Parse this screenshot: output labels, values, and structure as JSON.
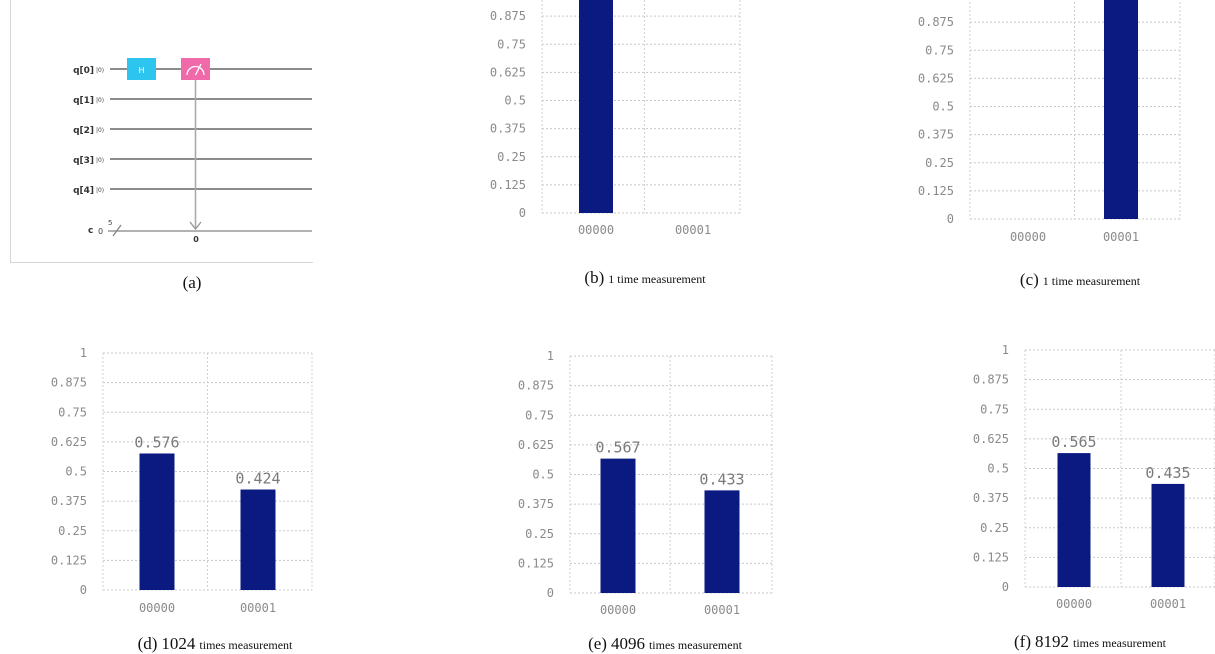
{
  "circuit": {
    "qubits": [
      "q[0]",
      "q[1]",
      "q[2]",
      "q[3]",
      "q[4]"
    ],
    "init_state": "|0⟩",
    "classical_label": "c",
    "classical_init": "0",
    "classical_width": "5",
    "gate_h_label": "H",
    "measure_target": "0",
    "colors": {
      "h_gate": "#2ec4f0",
      "measure_gate": "#f06aa9",
      "wire": "#666666"
    }
  },
  "captions": {
    "a": {
      "letter": "(a)"
    },
    "b": {
      "letter": "(b)",
      "text": "1 time measurement"
    },
    "c": {
      "letter": "(c)",
      "text": "1 time measurement"
    },
    "d": {
      "letter": "(d)",
      "num": "1024",
      "text": "times measurement"
    },
    "e": {
      "letter": "(e)",
      "num": "4096",
      "text": "times measurement"
    },
    "f": {
      "letter": "(f)",
      "num": "8192",
      "text": "times measurement"
    }
  },
  "chart_data": [
    {
      "id": "b",
      "type": "bar",
      "categories": [
        "00000",
        "00001"
      ],
      "values": [
        1,
        0
      ],
      "ylim": [
        0,
        1
      ],
      "yticks": [
        "0",
        "0.125",
        "0.25",
        "0.375",
        "0.5",
        "0.625",
        "0.75",
        "0.875"
      ],
      "data_labels": [
        "",
        ""
      ],
      "bar_color": "#0a1a80"
    },
    {
      "id": "c",
      "type": "bar",
      "categories": [
        "00000",
        "00001"
      ],
      "values": [
        0,
        1
      ],
      "ylim": [
        0,
        1
      ],
      "yticks": [
        "0",
        "0.125",
        "0.25",
        "0.375",
        "0.5",
        "0.625",
        "0.75",
        "0.875"
      ],
      "data_labels": [
        "",
        ""
      ],
      "bar_color": "#0a1a80"
    },
    {
      "id": "d",
      "type": "bar",
      "categories": [
        "00000",
        "00001"
      ],
      "values": [
        0.576,
        0.424
      ],
      "ylim": [
        0,
        1
      ],
      "yticks": [
        "0",
        "0.125",
        "0.25",
        "0.375",
        "0.5",
        "0.625",
        "0.75",
        "0.875",
        "1"
      ],
      "data_labels": [
        "0.576",
        "0.424"
      ],
      "bar_color": "#0a1a80"
    },
    {
      "id": "e",
      "type": "bar",
      "categories": [
        "00000",
        "00001"
      ],
      "values": [
        0.567,
        0.433
      ],
      "ylim": [
        0,
        1
      ],
      "yticks": [
        "0",
        "0.125",
        "0.25",
        "0.375",
        "0.5",
        "0.625",
        "0.75",
        "0.875",
        "1"
      ],
      "data_labels": [
        "0.567",
        "0.433"
      ],
      "bar_color": "#0a1a80"
    },
    {
      "id": "f",
      "type": "bar",
      "categories": [
        "00000",
        "00001"
      ],
      "values": [
        0.565,
        0.435
      ],
      "ylim": [
        0,
        1
      ],
      "yticks": [
        "0",
        "0.125",
        "0.25",
        "0.375",
        "0.5",
        "0.625",
        "0.75",
        "0.875",
        "1"
      ],
      "data_labels": [
        "0.565",
        "0.435"
      ],
      "bar_color": "#0a1a80"
    }
  ]
}
